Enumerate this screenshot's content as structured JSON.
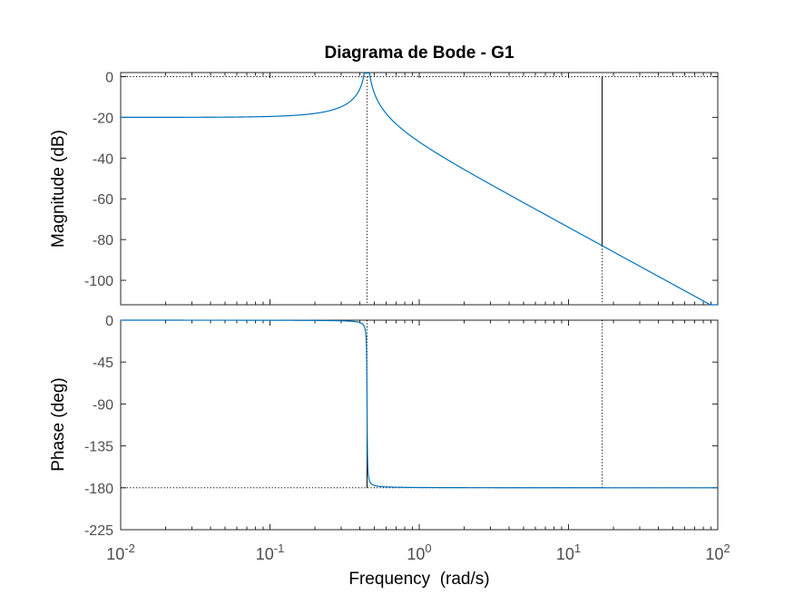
{
  "chart_data": {
    "type": "line",
    "title": "Diagrama de Bode - G1",
    "xlabel": "Frequency  (rad/s)",
    "x_scale": "log",
    "xlim": [
      0.01,
      100
    ],
    "x_ticks": [
      {
        "base": "10",
        "exp": "-2",
        "value": 0.01
      },
      {
        "base": "10",
        "exp": "-1",
        "value": 0.1
      },
      {
        "base": "10",
        "exp": "0",
        "value": 1
      },
      {
        "base": "10",
        "exp": "1",
        "value": 10
      },
      {
        "base": "10",
        "exp": "2",
        "value": 100
      }
    ],
    "system": {
      "gain": 0.1,
      "natural_frequency": 0.447,
      "damping_ratio": 0.005
    },
    "markers": {
      "resonance_frequency": 0.447,
      "phase_crossover_line": -180,
      "gain_crossover_line": 0,
      "marker_frequency": 16.8,
      "marker_magnitude": -83
    },
    "magnitude": {
      "ylabel": "Magnitude (dB)",
      "ylim": [
        -112,
        2
      ],
      "y_ticks": [
        "0",
        "-20",
        "-40",
        "-60",
        "-80",
        "-100"
      ],
      "y_tick_values": [
        0,
        -20,
        -40,
        -60,
        -80,
        -100
      ],
      "color": "#0072BD"
    },
    "phase": {
      "ylabel": "Phase (deg)",
      "ylim": [
        -225,
        0
      ],
      "y_ticks": [
        "0",
        "-45",
        "-90",
        "-135",
        "-180",
        "-225"
      ],
      "y_tick_values": [
        0,
        -45,
        -90,
        -135,
        -180,
        -225
      ],
      "color": "#0072BD"
    }
  }
}
